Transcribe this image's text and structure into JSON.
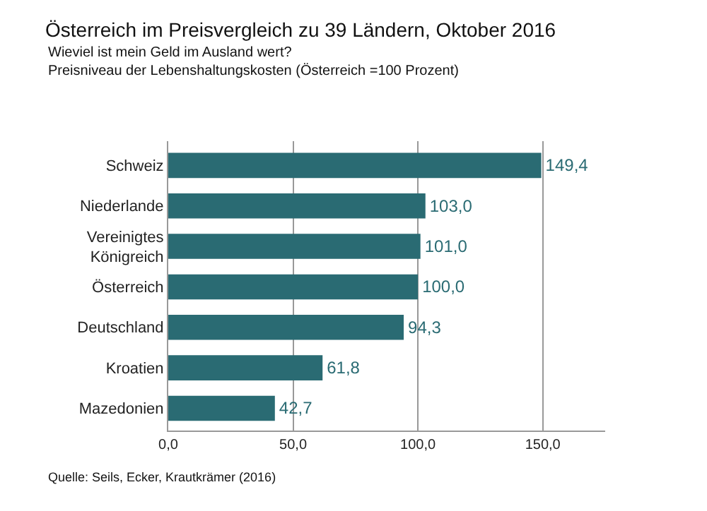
{
  "chart_data": {
    "type": "bar",
    "orientation": "horizontal",
    "title": "Österreich im Preisvergleich zu 39 Ländern, Oktober 2016",
    "subtitle": "Wieviel ist mein Geld im Ausland wert?\nPreisniveau der Lebenshaltungskosten (Österreich =100 Prozent)",
    "categories": [
      "Schweiz",
      "Niederlande",
      "Vereinigtes Königreich",
      "Österreich",
      "Deutschland",
      "Kroatien",
      "Mazedonien"
    ],
    "values": [
      149.4,
      103.0,
      101.0,
      100.0,
      94.3,
      61.8,
      42.7
    ],
    "value_labels": [
      "149,4",
      "103,0",
      "101,0",
      "100,0",
      "94,3",
      "61,8",
      "42,7"
    ],
    "color": "#2a6b73",
    "xlim": [
      0,
      175
    ],
    "xticks": [
      {
        "value": 0,
        "label": "0,0"
      },
      {
        "value": 50,
        "label": "50,0"
      },
      {
        "value": 100,
        "label": "100,0"
      },
      {
        "value": 150,
        "label": "150,0"
      }
    ],
    "grid": "x",
    "annotations": [
      "Quelle: Seils, Ecker, Krautkrämer (2016)"
    ]
  }
}
